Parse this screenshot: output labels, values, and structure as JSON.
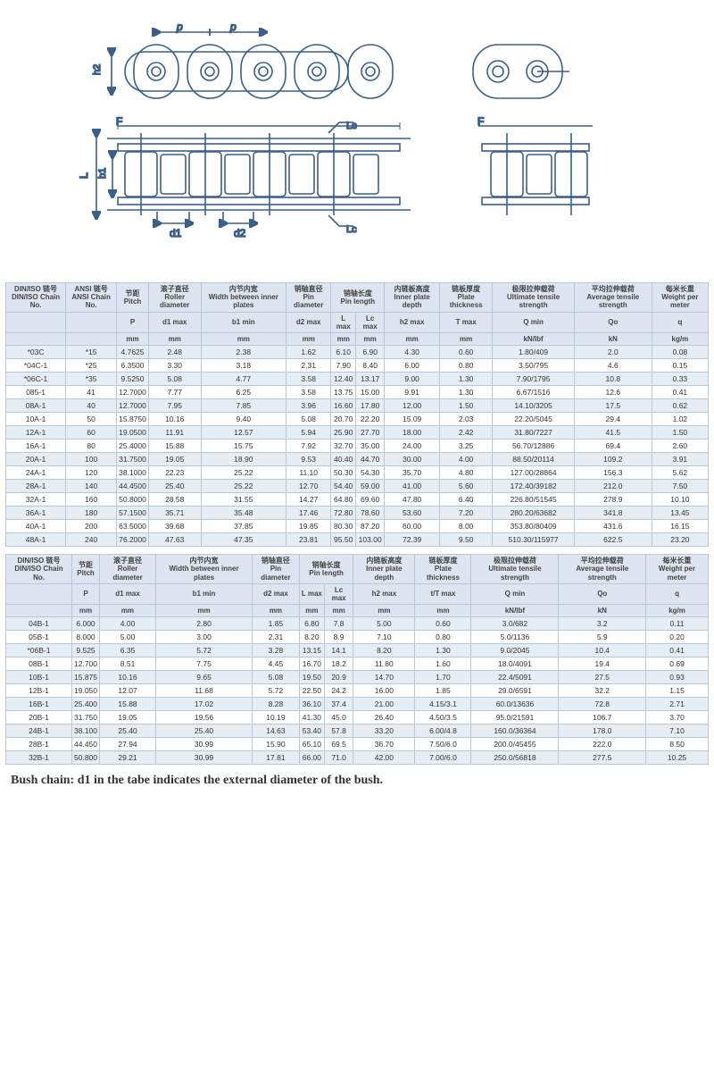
{
  "diagram": {
    "stroke": "#3a5f8a",
    "dim_labels": [
      "p",
      "p",
      "h2",
      "d1",
      "d2",
      "L",
      "b1",
      "F",
      "Lc",
      "Lc",
      "F"
    ]
  },
  "table1": {
    "header_row1": [
      "DIN/ISO\n链号\n\nDIN/ISO\nChain\nNo.",
      "ANSI\n链号\n\nANSI\nChain\nNo.",
      "节距\nPitch\n\nP\n\nmm",
      "滚子直径\nRoller\ndiameter\n\nd1\nmax\nmm",
      "内节内宽\nWidth\nbetween\ninner plates\nb1\nmin\nmm",
      "销轴直径\nPin\ndiameter\n\nd2\nmax\nmm",
      "销轴长度\nPin\nlength\nL\nmax\nmm",
      "\n\n\nLc\nmax\nmm",
      "内链板高度\nInner\nplate\ndepth\nh2\nmax\nmm",
      "链板厚度\nPlate\nthickness\n\nT\nmax\nmm",
      "极限拉伸载荷\nUltimate\ntensile\nstrength\nQ\nmin\nkN/lbf",
      "平均拉伸载荷\nAverage\ntensile\nstrength\n\nQo\n\nkN",
      "每米长重\nWeight\nper\nmeter\n\nq\n\nkg/m"
    ],
    "cols": [
      {
        "cn": "DIN/ISO 链号",
        "en": "DIN/ISO Chain No.",
        "sym": "",
        "unit": ""
      },
      {
        "cn": "ANSI 链号",
        "en": "ANSI Chain No.",
        "sym": "",
        "unit": ""
      },
      {
        "cn": "节距",
        "en": "Pitch",
        "sym": "P",
        "unit": "mm"
      },
      {
        "cn": "滚子直径",
        "en": "Roller diameter",
        "sym": "d1 max",
        "unit": "mm"
      },
      {
        "cn": "内节内宽",
        "en": "Width between inner plates",
        "sym": "b1 min",
        "unit": "mm"
      },
      {
        "cn": "销轴直径",
        "en": "Pin diameter",
        "sym": "d2 max",
        "unit": "mm"
      },
      {
        "cn": "销轴长度",
        "en": "Pin length",
        "sym": "L max",
        "unit": "mm",
        "span": "Lc max mm"
      },
      {
        "cn": "内链板高度",
        "en": "Inner plate depth",
        "sym": "h2 max",
        "unit": "mm"
      },
      {
        "cn": "链板厚度",
        "en": "Plate thickness",
        "sym": "T max",
        "unit": "mm"
      },
      {
        "cn": "极限拉伸载荷",
        "en": "Ultimate tensile strength",
        "sym": "Q min",
        "unit": "kN/lbf"
      },
      {
        "cn": "平均拉伸载荷",
        "en": "Average tensile strength",
        "sym": "Qo",
        "unit": "kN"
      },
      {
        "cn": "每米长重",
        "en": "Weight per meter",
        "sym": "q",
        "unit": "kg/m"
      }
    ],
    "rows": [
      [
        "*03C",
        "*15",
        "4.7625",
        "2.48",
        "2.38",
        "1.62",
        "6.10",
        "6.90",
        "4.30",
        "0.60",
        "1.80/409",
        "2.0",
        "0.08"
      ],
      [
        "*04C-1",
        "*25",
        "6.3500",
        "3.30",
        "3.18",
        "2.31",
        "7.90",
        "8.40",
        "6.00",
        "0.80",
        "3.50/795",
        "4.6",
        "0.15"
      ],
      [
        "*06C-1",
        "*35",
        "9.5250",
        "5.08",
        "4.77",
        "3.58",
        "12.40",
        "13.17",
        "9.00",
        "1.30",
        "7.90/1795",
        "10.8",
        "0.33"
      ],
      [
        "085-1",
        "41",
        "12.7000",
        "7.77",
        "6.25",
        "3.58",
        "13.75",
        "15.00",
        "9.91",
        "1.30",
        "6.67/1516",
        "12.6",
        "0.41"
      ],
      [
        "08A-1",
        "40",
        "12.7000",
        "7.95",
        "7.85",
        "3.96",
        "16.60",
        "17.80",
        "12.00",
        "1.50",
        "14.10/3205",
        "17.5",
        "0.62"
      ],
      [
        "10A-1",
        "50",
        "15.8750",
        "10.16",
        "9.40",
        "5.08",
        "20.70",
        "22.20",
        "15.09",
        "2.03",
        "22.20/5045",
        "29.4",
        "1.02"
      ],
      [
        "12A-1",
        "60",
        "19.0500",
        "11.91",
        "12.57",
        "5.94",
        "25.90",
        "27.70",
        "18.00",
        "2.42",
        "31.80/7227",
        "41.5",
        "1.50"
      ],
      [
        "16A-1",
        "80",
        "25.4000",
        "15.88",
        "15.75",
        "7.92",
        "32.70",
        "35.00",
        "24.00",
        "3.25",
        "56.70/12886",
        "69.4",
        "2.60"
      ],
      [
        "20A-1",
        "100",
        "31.7500",
        "19.05",
        "18.90",
        "9.53",
        "40.40",
        "44.70",
        "30.00",
        "4.00",
        "88.50/20114",
        "109.2",
        "3.91"
      ],
      [
        "24A-1",
        "120",
        "38.1000",
        "22.23",
        "25.22",
        "11.10",
        "50.30",
        "54.30",
        "35.70",
        "4.80",
        "127.00/28864",
        "156.3",
        "5.62"
      ],
      [
        "28A-1",
        "140",
        "44.4500",
        "25.40",
        "25.22",
        "12.70",
        "54.40",
        "59.00",
        "41.00",
        "5.60",
        "172.40/39182",
        "212.0",
        "7.50"
      ],
      [
        "32A-1",
        "160",
        "50.8000",
        "28.58",
        "31.55",
        "14.27",
        "64.80",
        "69.60",
        "47.80",
        "6.40",
        "226.80/51545",
        "278.9",
        "10.10"
      ],
      [
        "36A-1",
        "180",
        "57.1500",
        "35.71",
        "35.48",
        "17.46",
        "72.80",
        "78.60",
        "53.60",
        "7.20",
        "280.20/63682",
        "341.8",
        "13.45"
      ],
      [
        "40A-1",
        "200",
        "63.5000",
        "39.68",
        "37.85",
        "19.85",
        "80.30",
        "87.20",
        "60.00",
        "8.00",
        "353.80/80409",
        "431.6",
        "16.15"
      ],
      [
        "48A-1",
        "240",
        "76.2000",
        "47.63",
        "47.35",
        "23.81",
        "95.50",
        "103.00",
        "72.39",
        "9.50",
        "510.30/115977",
        "622.5",
        "23.20"
      ]
    ]
  },
  "table2": {
    "cols": [
      {
        "cn": "DIN/ISO 链号",
        "en": "DIN/ISO Chain No.",
        "sym": "",
        "unit": ""
      },
      {
        "cn": "节距",
        "en": "Pitch",
        "sym": "P",
        "unit": "mm"
      },
      {
        "cn": "滚子直径",
        "en": "Roller diameter",
        "sym": "d1 max",
        "unit": "mm"
      },
      {
        "cn": "内节内宽",
        "en": "Width between inner plates",
        "sym": "b1 min",
        "unit": "mm"
      },
      {
        "cn": "销轴直径",
        "en": "Pin diameter",
        "sym": "d2 max",
        "unit": "mm"
      },
      {
        "cn": "销轴长度",
        "en": "Pin length",
        "sym": "L max",
        "unit": "mm",
        "span": "Lc max mm"
      },
      {
        "cn": "内链板高度",
        "en": "Inner plate depth",
        "sym": "h2 max",
        "unit": "mm"
      },
      {
        "cn": "链板厚度",
        "en": "Plate thickness",
        "sym": "t/T max",
        "unit": "mm"
      },
      {
        "cn": "极限拉伸载荷",
        "en": "Ultimate tensile strength",
        "sym": "Q min",
        "unit": "kN/lbf"
      },
      {
        "cn": "平均拉伸载荷",
        "en": "Average tensile strength",
        "sym": "Qo",
        "unit": "kN"
      },
      {
        "cn": "每米长重",
        "en": "Weight per meter",
        "sym": "q",
        "unit": "kg/m"
      }
    ],
    "rows": [
      [
        "04B-1",
        "6.000",
        "4.00",
        "2.80",
        "1.85",
        "6.80",
        "7.8",
        "5.00",
        "0.60",
        "3.0/682",
        "3.2",
        "0.11"
      ],
      [
        "05B-1",
        "8.000",
        "5.00",
        "3.00",
        "2.31",
        "8.20",
        "8.9",
        "7.10",
        "0.80",
        "5.0/1136",
        "5.9",
        "0.20"
      ],
      [
        "*06B-1",
        "9.525",
        "6.35",
        "5.72",
        "3.28",
        "13.15",
        "14.1",
        "8.20",
        "1.30",
        "9.0/2045",
        "10.4",
        "0.41"
      ],
      [
        "08B-1",
        "12.700",
        "8.51",
        "7.75",
        "4.45",
        "16.70",
        "18.2",
        "11.80",
        "1.60",
        "18.0/4091",
        "19.4",
        "0.69"
      ],
      [
        "10B-1",
        "15.875",
        "10.16",
        "9.65",
        "5.08",
        "19.50",
        "20.9",
        "14.70",
        "1.70",
        "22.4/5091",
        "27.5",
        "0.93"
      ],
      [
        "12B-1",
        "19.050",
        "12.07",
        "11.68",
        "5.72",
        "22.50",
        "24.2",
        "16.00",
        "1.85",
        "29.0/6591",
        "32.2",
        "1.15"
      ],
      [
        "16B-1",
        "25.400",
        "15.88",
        "17.02",
        "8.28",
        "36.10",
        "37.4",
        "21.00",
        "4.15/3.1",
        "60.0/13636",
        "72.8",
        "2.71"
      ],
      [
        "20B-1",
        "31.750",
        "19.05",
        "19.56",
        "10.19",
        "41.30",
        "45.0",
        "26.40",
        "4.50/3.5",
        "95.0/21591",
        "106.7",
        "3.70"
      ],
      [
        "24B-1",
        "38.100",
        "25.40",
        "25.40",
        "14.63",
        "53.40",
        "57.8",
        "33.20",
        "6.00/4.8",
        "160.0/36364",
        "178.0",
        "7.10"
      ],
      [
        "28B-1",
        "44.450",
        "27.94",
        "30.99",
        "15.90",
        "65.10",
        "69.5",
        "36.70",
        "7.50/6.0",
        "200.0/45455",
        "222.0",
        "8.50"
      ],
      [
        "32B-1",
        "50.800",
        "29.21",
        "30.99",
        "17.81",
        "66.00",
        "71.0",
        "42.00",
        "7.00/6.0",
        "250.0/56818",
        "277.5",
        "10.25"
      ]
    ]
  },
  "footnote": "Bush chain: d1 in the tabe indicates the external diameter of the bush."
}
